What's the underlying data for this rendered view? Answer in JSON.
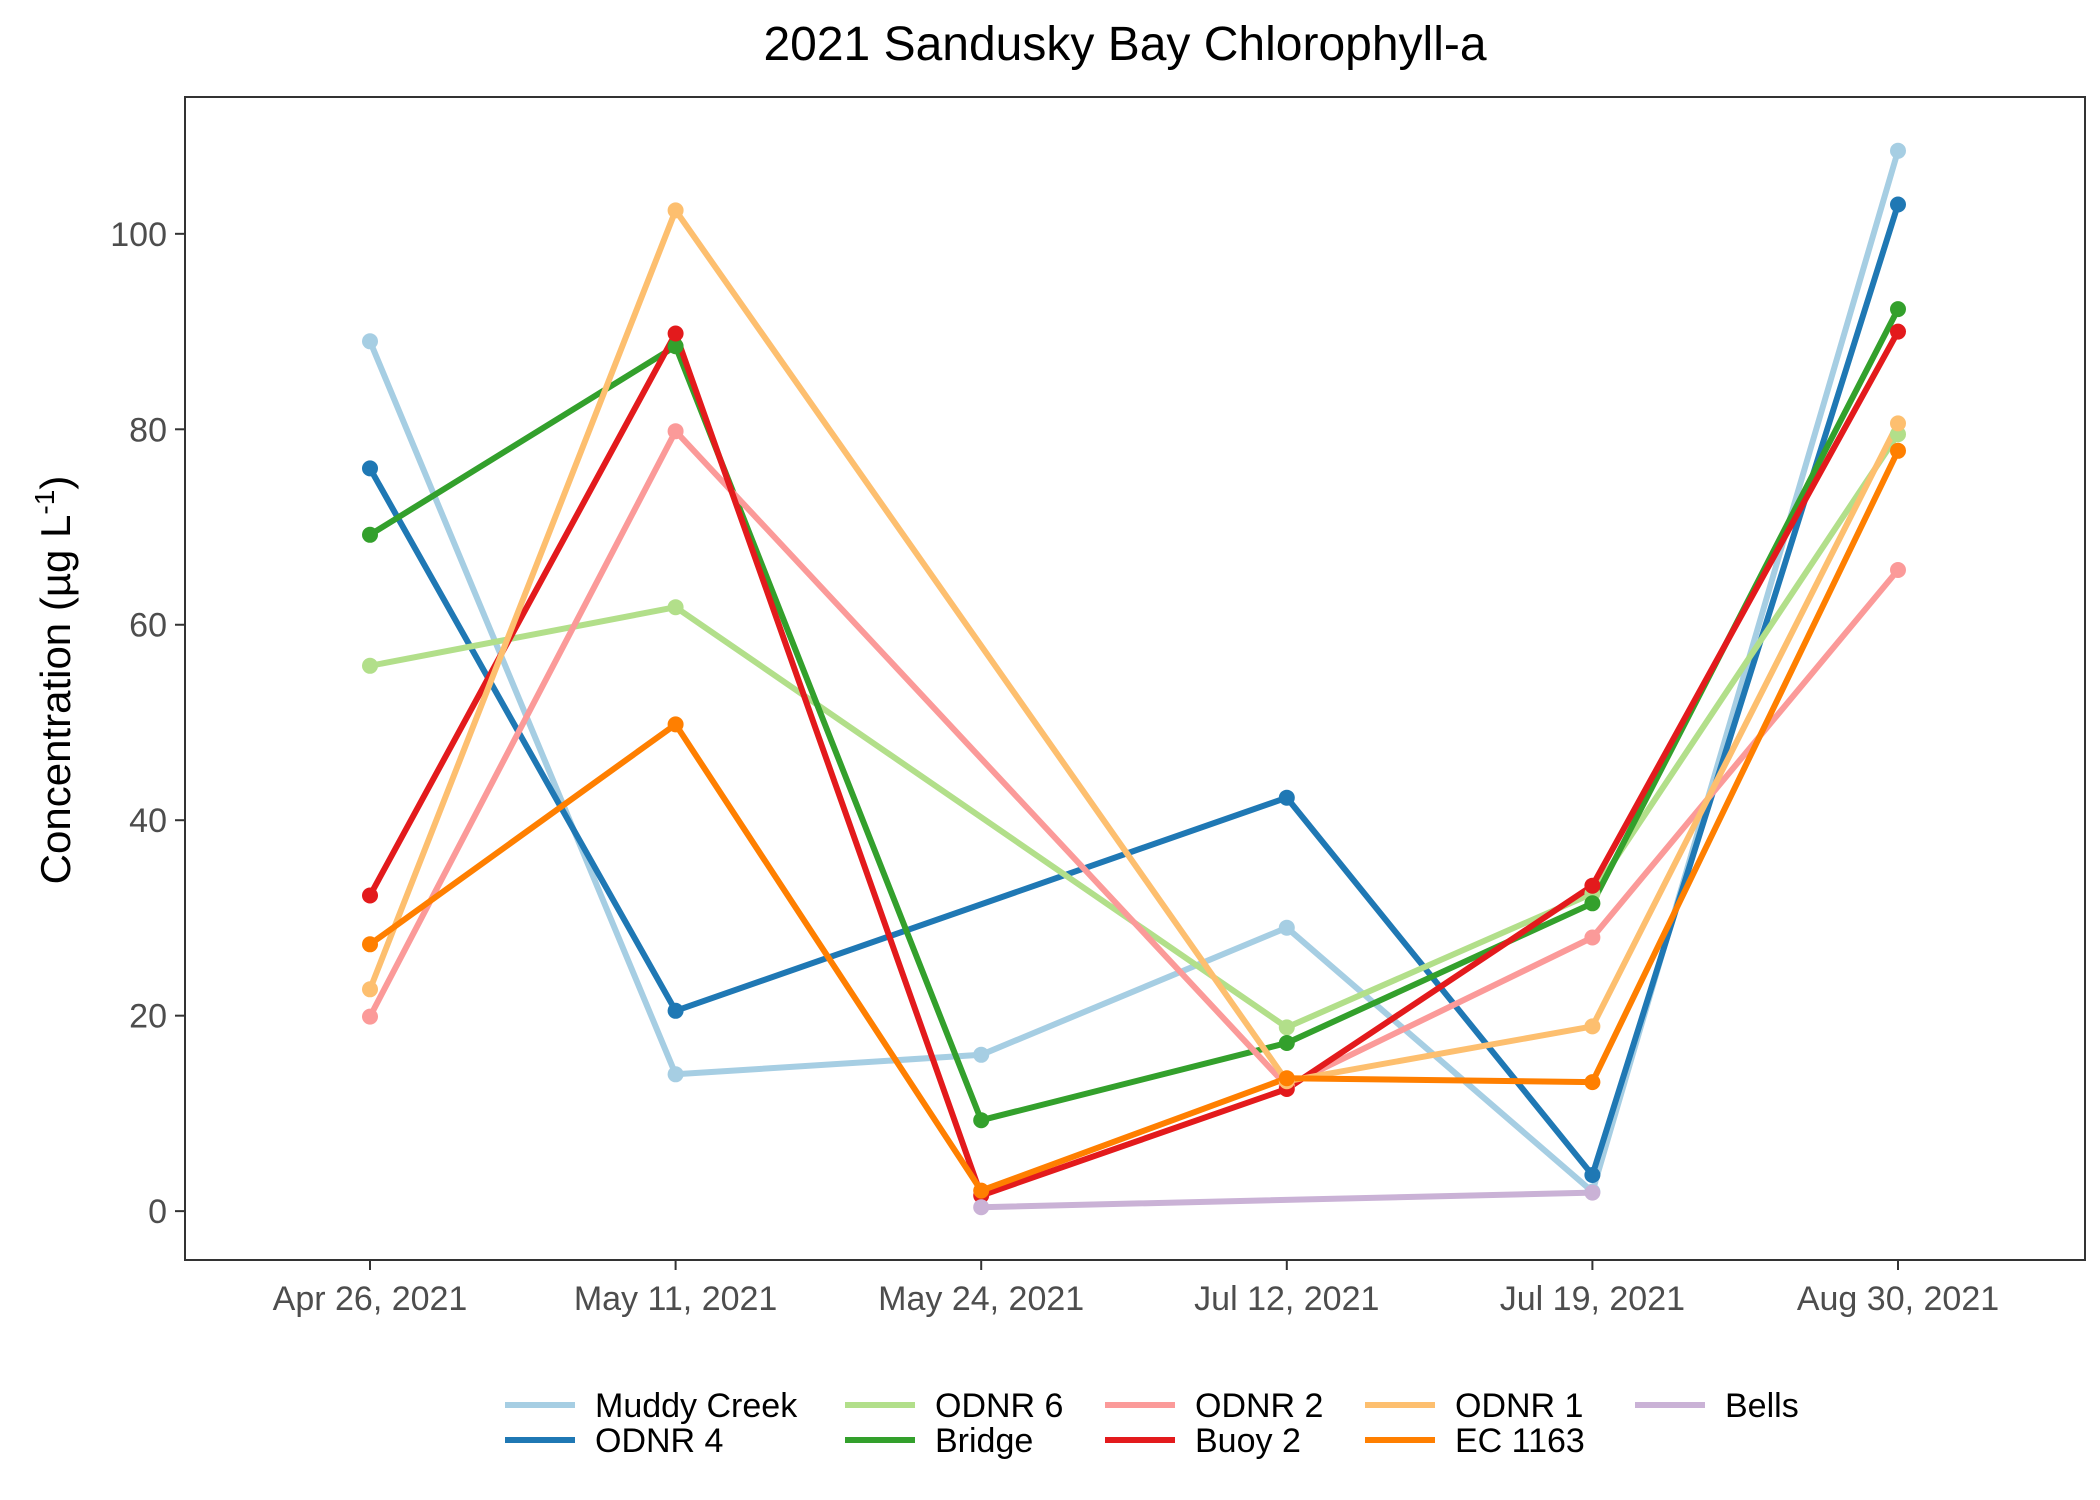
{
  "chart_data": {
    "type": "line",
    "title": "2021 Sandusky Bay Chlorophyll-a",
    "xlabel": "",
    "ylabel": "Concentration (µg L",
    "ylabel_superscript": "-1",
    "ylabel_suffix": ")",
    "categories": [
      "Apr 26, 2021",
      "May 11, 2021",
      "May 24, 2021",
      "Jul 12, 2021",
      "Jul 19, 2021",
      "Aug 30, 2021"
    ],
    "ylim": [
      -5,
      114
    ],
    "yticks": [
      0,
      20,
      40,
      60,
      80,
      100
    ],
    "grid": false,
    "legend_position": "bottom",
    "series": [
      {
        "name": "Muddy Creek",
        "color": "#a6cee3",
        "values": [
          89,
          14,
          16,
          29,
          2,
          108.5
        ]
      },
      {
        "name": "ODNR 4",
        "color": "#1f78b4",
        "values": [
          76,
          20.5,
          null,
          42.3,
          3.7,
          103
        ]
      },
      {
        "name": "ODNR 6",
        "color": "#b2df8a",
        "values": [
          55.8,
          61.8,
          null,
          18.8,
          32.5,
          79.5
        ]
      },
      {
        "name": "Bridge",
        "color": "#33a02c",
        "values": [
          69.2,
          88.5,
          9.3,
          17.2,
          31.5,
          92.3
        ]
      },
      {
        "name": "ODNR 2",
        "color": "#fb9a99",
        "values": [
          19.9,
          79.8,
          null,
          12.8,
          28,
          65.6
        ]
      },
      {
        "name": "Buoy 2",
        "color": "#e31a1c",
        "values": [
          32.3,
          89.8,
          1.6,
          12.5,
          33.3,
          90
        ]
      },
      {
        "name": "ODNR 1",
        "color": "#fdbf6f",
        "values": [
          22.7,
          102.4,
          null,
          13.3,
          18.9,
          80.6
        ]
      },
      {
        "name": "EC 1163",
        "color": "#ff7f00",
        "values": [
          27.3,
          49.8,
          2.1,
          13.6,
          13.2,
          77.8
        ]
      },
      {
        "name": "Bells",
        "color": "#cab2d6",
        "values": [
          null,
          null,
          0.4,
          null,
          1.9,
          null
        ]
      }
    ]
  }
}
